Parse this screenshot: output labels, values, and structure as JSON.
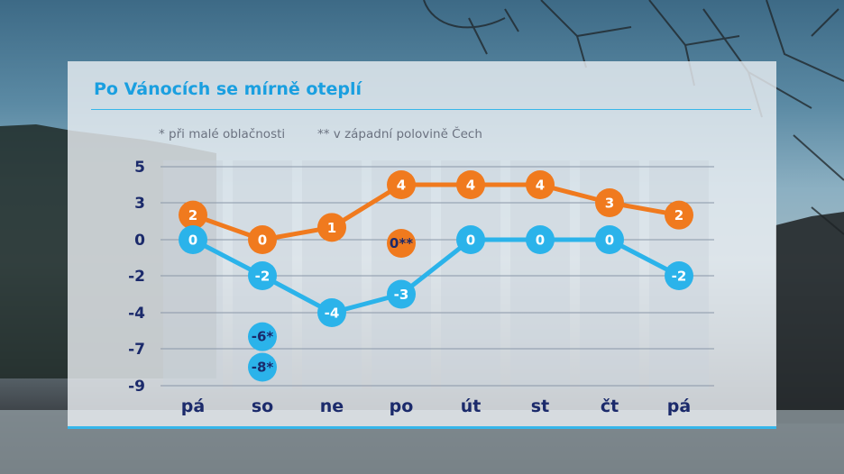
{
  "title": "Po Vánocích se mírně oteplí",
  "legend": {
    "note1_mark": "*",
    "note1": "při malé oblačnosti",
    "note2_mark": "**",
    "note2": "v západní polovině Čech"
  },
  "colors": {
    "max": "#f07a1e",
    "min": "#2bb3ea",
    "accent": "#1a9fe0",
    "text": "#1b2a6b"
  },
  "chart_data": {
    "type": "line",
    "categories": [
      "pá",
      "so",
      "ne",
      "po",
      "út",
      "st",
      "čt",
      "pá"
    ],
    "y_ticks": [
      "5",
      "3",
      "0",
      "-2",
      "-4",
      "-7",
      "-9"
    ],
    "series": [
      {
        "values": [
          2,
          0,
          1,
          4,
          4,
          4,
          3,
          2
        ],
        "labels": [
          "2",
          "0",
          "1",
          "4",
          "4",
          "4",
          "3",
          "2"
        ],
        "color": "#f07a1e"
      },
      {
        "values": [
          0,
          -2,
          -4,
          -3,
          0,
          0,
          0,
          -2
        ],
        "labels": [
          "0",
          "-2",
          "-4",
          "-3",
          "0",
          "0",
          "0",
          "-2"
        ],
        "color": "#2bb3ea"
      }
    ],
    "annotations": [
      {
        "category": "po",
        "value": 0,
        "label": "0**",
        "color": "#f07a1e"
      },
      {
        "category": "so",
        "value": -6,
        "label": "-6*",
        "color": "#2bb3ea"
      },
      {
        "category": "so",
        "value": -8,
        "label": "-8*",
        "color": "#2bb3ea"
      }
    ]
  }
}
